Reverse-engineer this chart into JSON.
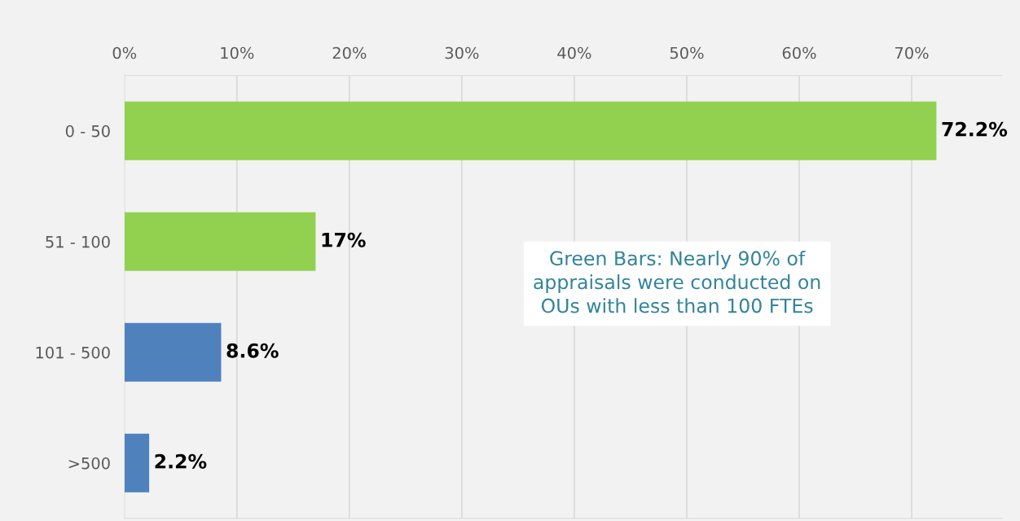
{
  "chart_data": {
    "type": "bar",
    "orientation": "horizontal",
    "categories": [
      "0 - 50",
      "51 - 100",
      "101 - 500",
      ">500"
    ],
    "values": [
      72.2,
      17,
      8.6,
      2.2
    ],
    "colors": [
      "#92d050",
      "#92d050",
      "#4f81bd",
      "#4f81bd"
    ],
    "value_labels": [
      "72.2%",
      "17%",
      "8.6%",
      "2.2%"
    ],
    "xlim": [
      0,
      78
    ],
    "xticks": [
      {
        "value": 0,
        "label": "0%"
      },
      {
        "value": 10,
        "label": "10%"
      },
      {
        "value": 20,
        "label": "20%"
      },
      {
        "value": 30,
        "label": "30%"
      },
      {
        "value": 40,
        "label": "40%"
      },
      {
        "value": 50,
        "label": "50%"
      },
      {
        "value": 60,
        "label": "60%"
      },
      {
        "value": 70,
        "label": "70%"
      }
    ],
    "grid": "x",
    "annotations": [
      "Green Bars: Nearly 90% of\nappraisals were conducted on\nOUs with less than 100 FTEs"
    ]
  }
}
